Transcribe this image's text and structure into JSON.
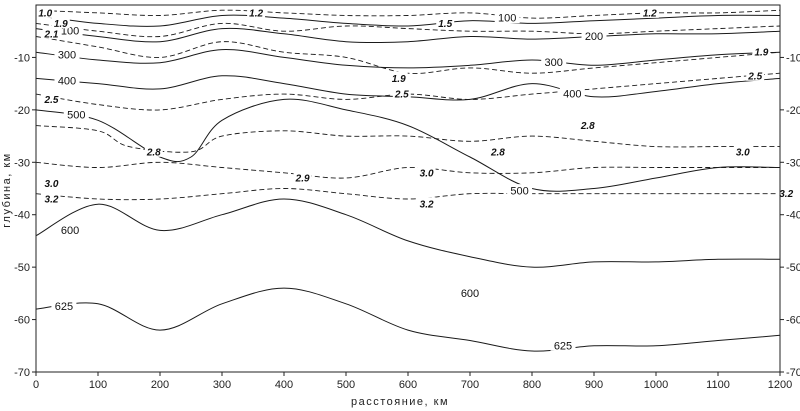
{
  "chart_data": {
    "type": "line",
    "title": "",
    "xlabel": "расстояние, км",
    "ylabel": "глубина, км",
    "xlim": [
      0,
      1200
    ],
    "ylim": [
      -70,
      0
    ],
    "x_ticks": [
      0,
      100,
      200,
      300,
      400,
      500,
      600,
      700,
      800,
      900,
      1000,
      1100,
      1200
    ],
    "y_ticks": [
      -10,
      -20,
      -30,
      -40,
      -50,
      -60,
      -70
    ],
    "grid": false,
    "series": [
      {
        "name": "100",
        "style": "solid",
        "points": [
          [
            0,
            -2
          ],
          [
            100,
            -3.5
          ],
          [
            200,
            -4
          ],
          [
            300,
            -2
          ],
          [
            400,
            -2.5
          ],
          [
            500,
            -3.5
          ],
          [
            600,
            -4
          ],
          [
            700,
            -3
          ],
          [
            800,
            -3.5
          ],
          [
            900,
            -3
          ],
          [
            1000,
            -2.5
          ],
          [
            1100,
            -2
          ],
          [
            1200,
            -2
          ]
        ],
        "labels": [
          {
            "text": "100",
            "x": 55,
            "y": -5
          },
          {
            "text": "100",
            "x": 760,
            "y": -2.5
          }
        ]
      },
      {
        "name": "200",
        "style": "solid",
        "points": [
          [
            0,
            -4.5
          ],
          [
            100,
            -6
          ],
          [
            200,
            -7
          ],
          [
            300,
            -4.5
          ],
          [
            400,
            -5.5
          ],
          [
            500,
            -7
          ],
          [
            600,
            -7
          ],
          [
            700,
            -6
          ],
          [
            800,
            -6.5
          ],
          [
            900,
            -6
          ],
          [
            1000,
            -5.5
          ],
          [
            1100,
            -5.5
          ],
          [
            1200,
            -5
          ]
        ],
        "labels": [
          {
            "text": "200",
            "x": 900,
            "y": -6
          }
        ]
      },
      {
        "name": "300",
        "style": "solid",
        "points": [
          [
            0,
            -9
          ],
          [
            100,
            -10.5
          ],
          [
            200,
            -11
          ],
          [
            300,
            -8.5
          ],
          [
            400,
            -10
          ],
          [
            500,
            -11.5
          ],
          [
            600,
            -12
          ],
          [
            700,
            -11.5
          ],
          [
            800,
            -10.5
          ],
          [
            900,
            -11.5
          ],
          [
            1000,
            -10.5
          ],
          [
            1100,
            -9.5
          ],
          [
            1200,
            -9
          ]
        ],
        "labels": [
          {
            "text": "300",
            "x": 50,
            "y": -9.5
          },
          {
            "text": "300",
            "x": 835,
            "y": -11
          }
        ]
      },
      {
        "name": "400",
        "style": "solid",
        "points": [
          [
            0,
            -14
          ],
          [
            100,
            -15
          ],
          [
            200,
            -16
          ],
          [
            300,
            -13.5
          ],
          [
            400,
            -15
          ],
          [
            500,
            -17
          ],
          [
            600,
            -17.5
          ],
          [
            700,
            -18
          ],
          [
            800,
            -15
          ],
          [
            900,
            -17.5
          ],
          [
            1000,
            -16.5
          ],
          [
            1100,
            -15
          ],
          [
            1200,
            -14
          ]
        ],
        "labels": [
          {
            "text": "400",
            "x": 50,
            "y": -14.5
          },
          {
            "text": "400",
            "x": 865,
            "y": -17
          }
        ]
      },
      {
        "name": "500",
        "style": "solid",
        "points": [
          [
            0,
            -20
          ],
          [
            100,
            -22
          ],
          [
            200,
            -29
          ],
          [
            250,
            -29
          ],
          [
            300,
            -22
          ],
          [
            400,
            -18
          ],
          [
            500,
            -20
          ],
          [
            600,
            -23
          ],
          [
            700,
            -29
          ],
          [
            800,
            -35
          ],
          [
            900,
            -35
          ],
          [
            1000,
            -33
          ],
          [
            1100,
            -31
          ],
          [
            1200,
            -31
          ]
        ],
        "labels": [
          {
            "text": "500",
            "x": 65,
            "y": -21
          },
          {
            "text": "500",
            "x": 780,
            "y": -35.5
          }
        ]
      },
      {
        "name": "600",
        "style": "solid",
        "points": [
          [
            0,
            -44
          ],
          [
            100,
            -38
          ],
          [
            200,
            -43
          ],
          [
            300,
            -40
          ],
          [
            400,
            -37
          ],
          [
            500,
            -40
          ],
          [
            600,
            -45
          ],
          [
            700,
            -48
          ],
          [
            800,
            -50
          ],
          [
            900,
            -49
          ],
          [
            1000,
            -49
          ],
          [
            1100,
            -48.5
          ],
          [
            1200,
            -48.5
          ]
        ],
        "labels": [
          {
            "text": "600",
            "x": 55,
            "y": -43
          },
          {
            "text": "600",
            "x": 700,
            "y": -55
          }
        ]
      },
      {
        "name": "625",
        "style": "solid",
        "points": [
          [
            0,
            -58
          ],
          [
            100,
            -57
          ],
          [
            200,
            -62
          ],
          [
            300,
            -57
          ],
          [
            400,
            -54
          ],
          [
            500,
            -57
          ],
          [
            600,
            -62
          ],
          [
            700,
            -64
          ],
          [
            800,
            -66
          ],
          [
            900,
            -65
          ],
          [
            1000,
            -65
          ],
          [
            1100,
            -64
          ],
          [
            1200,
            -63
          ]
        ],
        "labels": [
          {
            "text": "625",
            "x": 45,
            "y": -57.5
          },
          {
            "text": "625",
            "x": 850,
            "y": -65
          }
        ]
      },
      {
        "name": "1.0",
        "style": "dashed",
        "points": [
          [
            0,
            -1
          ],
          [
            100,
            -1.5
          ],
          [
            200,
            -2
          ],
          [
            300,
            -1
          ],
          [
            400,
            -1.5
          ],
          [
            500,
            -2
          ],
          [
            600,
            -2
          ],
          [
            700,
            -1.5
          ],
          [
            800,
            -2.5
          ],
          [
            900,
            -2
          ],
          [
            1000,
            -1.5
          ],
          [
            1100,
            -1.5
          ],
          [
            1200,
            -1
          ]
        ],
        "labels": [
          {
            "text": "1.0",
            "x": 15,
            "y": -1.5
          },
          {
            "text": "1.2",
            "x": 355,
            "y": -1.5
          },
          {
            "text": "1.2",
            "x": 990,
            "y": -1.5
          }
        ]
      },
      {
        "name": "1.5",
        "style": "dashed",
        "points": [
          [
            0,
            -3.5
          ],
          [
            100,
            -5
          ],
          [
            200,
            -6
          ],
          [
            300,
            -3.5
          ],
          [
            400,
            -5
          ],
          [
            500,
            -4
          ],
          [
            600,
            -4.5
          ],
          [
            700,
            -5
          ],
          [
            800,
            -5
          ],
          [
            900,
            -5.5
          ],
          [
            1000,
            -5
          ],
          [
            1100,
            -4.5
          ],
          [
            1200,
            -4
          ]
        ],
        "labels": [
          {
            "text": "1.9",
            "x": 40,
            "y": -3.5
          },
          {
            "text": "1.5",
            "x": 660,
            "y": -3.5
          },
          {
            "text": "1.9",
            "x": 1170,
            "y": -9
          }
        ]
      },
      {
        "name": "1.9",
        "style": "dashed",
        "points": [
          [
            0,
            -6
          ],
          [
            100,
            -8
          ],
          [
            200,
            -10
          ],
          [
            300,
            -7
          ],
          [
            400,
            -9
          ],
          [
            500,
            -10
          ],
          [
            600,
            -13
          ],
          [
            700,
            -12
          ],
          [
            800,
            -13
          ],
          [
            900,
            -12
          ],
          [
            1000,
            -11
          ],
          [
            1100,
            -10
          ],
          [
            1200,
            -9
          ]
        ],
        "labels": [
          {
            "text": "2.1",
            "x": 25,
            "y": -5.5
          },
          {
            "text": "1.9",
            "x": 585,
            "y": -14
          }
        ]
      },
      {
        "name": "2.5",
        "style": "dashed",
        "points": [
          [
            0,
            -17
          ],
          [
            100,
            -19
          ],
          [
            200,
            -20
          ],
          [
            300,
            -18
          ],
          [
            400,
            -17
          ],
          [
            500,
            -18
          ],
          [
            600,
            -17
          ],
          [
            700,
            -18
          ],
          [
            800,
            -17
          ],
          [
            900,
            -16
          ],
          [
            1000,
            -15
          ],
          [
            1100,
            -14
          ],
          [
            1200,
            -13
          ]
        ],
        "labels": [
          {
            "text": "2.5",
            "x": 25,
            "y": -18
          },
          {
            "text": "2.5",
            "x": 590,
            "y": -17
          },
          {
            "text": "2.5",
            "x": 1160,
            "y": -13.5
          }
        ]
      },
      {
        "name": "2.8",
        "style": "dashed",
        "points": [
          [
            0,
            -23
          ],
          [
            100,
            -24
          ],
          [
            150,
            -27
          ],
          [
            250,
            -28
          ],
          [
            300,
            -25
          ],
          [
            400,
            -24
          ],
          [
            500,
            -25
          ],
          [
            600,
            -25
          ],
          [
            700,
            -26
          ],
          [
            800,
            -25
          ],
          [
            900,
            -26
          ],
          [
            1000,
            -27
          ],
          [
            1100,
            -27
          ],
          [
            1200,
            -27
          ]
        ],
        "labels": [
          {
            "text": "2.8",
            "x": 190,
            "y": -28
          },
          {
            "text": "2.8",
            "x": 745,
            "y": -28
          },
          {
            "text": "2.8",
            "x": 890,
            "y": -23
          }
        ]
      },
      {
        "name": "2.9",
        "style": "dashed",
        "points": [
          [
            0,
            -30
          ],
          [
            100,
            -31
          ],
          [
            200,
            -30
          ],
          [
            300,
            -31
          ],
          [
            400,
            -32
          ],
          [
            500,
            -33
          ],
          [
            600,
            -31
          ],
          [
            700,
            -32
          ],
          [
            800,
            -32
          ],
          [
            900,
            -31
          ],
          [
            1000,
            -31
          ],
          [
            1100,
            -31
          ],
          [
            1200,
            -31
          ]
        ],
        "labels": [
          {
            "text": "2.9",
            "x": 430,
            "y": -33
          },
          {
            "text": "3.0",
            "x": 630,
            "y": -32
          },
          {
            "text": "3.0",
            "x": 1140,
            "y": -28
          }
        ]
      },
      {
        "name": "3.2",
        "style": "dashed",
        "points": [
          [
            0,
            -36
          ],
          [
            100,
            -37
          ],
          [
            200,
            -37
          ],
          [
            300,
            -36
          ],
          [
            400,
            -35
          ],
          [
            500,
            -36
          ],
          [
            600,
            -37
          ],
          [
            700,
            -36
          ],
          [
            800,
            -36
          ],
          [
            900,
            -36
          ],
          [
            1000,
            -36
          ],
          [
            1100,
            -36
          ],
          [
            1200,
            -36
          ]
        ],
        "labels": [
          {
            "text": "3.0",
            "x": 25,
            "y": -34
          },
          {
            "text": "3.2",
            "x": 25,
            "y": -37
          },
          {
            "text": "3.2",
            "x": 630,
            "y": -38
          },
          {
            "text": "3.2",
            "x": 1210,
            "y": -36
          }
        ]
      }
    ]
  }
}
